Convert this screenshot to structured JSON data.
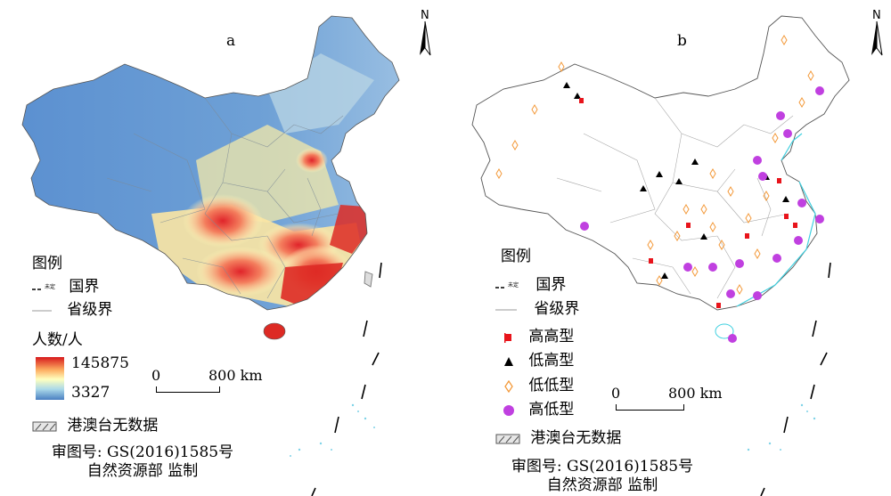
{
  "panels": [
    {
      "letter": "a",
      "north": "N",
      "legend": {
        "title": "图例",
        "border_national": "国界",
        "border_national_mark": "未定",
        "border_provincial": "省级界",
        "variable_title": "人数/人",
        "max_value": "145875",
        "min_value": "3327",
        "no_data": "港澳台无数据"
      },
      "scale": {
        "start": "0",
        "end": "800 km"
      },
      "approval": [
        "审图号: GS(2016)1585号",
        "自然资源部 监制"
      ]
    },
    {
      "letter": "b",
      "north": "N",
      "legend": {
        "title": "图例",
        "border_national": "国界",
        "border_national_mark": "未定",
        "border_provincial": "省级界",
        "high_high": "高高型",
        "low_high": "低高型",
        "low_low": "低低型",
        "high_low": "高低型",
        "no_data": "港澳台无数据"
      },
      "scale": {
        "start": "0",
        "end": "800 km"
      },
      "approval": [
        "审图号: GS(2016)1585号",
        "自然资源部 监制"
      ]
    }
  ],
  "colors": {
    "high": "#d7191c",
    "mid": "#ffffbf",
    "low": "#4a7fc1",
    "high_high": "#e8141b",
    "low_high": "#000000",
    "low_low": "#f39a3b",
    "high_low": "#c040e0",
    "province_border": "#9a9a9a",
    "coast": "#3fd0e0"
  },
  "icons": [
    "north-arrow-icon",
    "red-flag-icon",
    "black-triangle-icon",
    "orange-diamond-icon",
    "purple-circle-icon",
    "no-data-hatch-icon"
  ]
}
